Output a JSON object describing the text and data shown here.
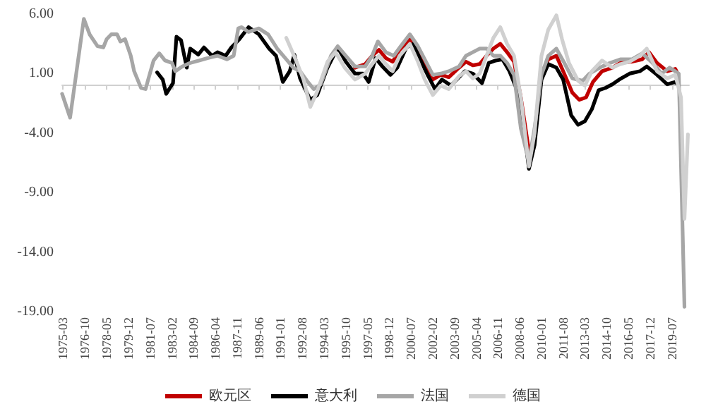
{
  "chart_data": {
    "type": "line",
    "legend": "bottom",
    "grid": false,
    "marker": "none",
    "line_style": "solid",
    "xlim": [
      "1975-02",
      "2020-10"
    ],
    "ylim": [
      -19,
      6
    ],
    "xticks": [
      "1975-03",
      "1976-10",
      "1978-05",
      "1979-12",
      "1981-07",
      "1983-02",
      "1984-09",
      "1986-04",
      "1987-11",
      "1989-06",
      "1991-01",
      "1992-08",
      "1994-03",
      "1995-10",
      "1997-05",
      "1998-12",
      "2000-07",
      "2002-02",
      "2003-09",
      "2005-04",
      "2006-11",
      "2008-06",
      "2010-01",
      "2011-08",
      "2013-03",
      "2014-10",
      "2016-05",
      "2017-12",
      "2019-07"
    ],
    "yticks": [
      {
        "value": -19,
        "label": "-19.00"
      },
      {
        "value": -14,
        "label": "-14.00"
      },
      {
        "value": -9,
        "label": "-9.00"
      },
      {
        "value": -4,
        "label": "-4.00"
      },
      {
        "value": 1,
        "label": "1.00"
      },
      {
        "value": 6,
        "label": "6.00"
      }
    ],
    "series": [
      {
        "name": "欧元区",
        "color": "#c00000",
        "x": [
          "1996-06",
          "1997-03",
          "1997-09",
          "1998-03",
          "1998-09",
          "1999-03",
          "1999-09",
          "2000-06",
          "2001-01",
          "2001-07",
          "2002-02",
          "2002-09",
          "2003-04",
          "2004-01",
          "2004-07",
          "2005-01",
          "2005-07",
          "2006-01",
          "2006-07",
          "2007-01",
          "2007-07",
          "2008-01",
          "2008-07",
          "2009-02",
          "2009-07",
          "2010-01",
          "2010-07",
          "2011-02",
          "2011-08",
          "2012-04",
          "2012-10",
          "2013-04",
          "2013-10",
          "2014-06",
          "2015-03",
          "2015-10",
          "2016-08",
          "2017-05",
          "2017-11",
          "2018-06",
          "2019-03",
          "2019-10",
          "2020-01"
        ],
        "values": [
          1.5,
          1.8,
          2.5,
          3.0,
          2.3,
          2.0,
          3.0,
          3.9,
          3.0,
          1.8,
          0.5,
          0.9,
          0.7,
          1.5,
          2.0,
          1.7,
          1.8,
          2.5,
          3.1,
          3.5,
          2.8,
          2.0,
          -1.0,
          -5.5,
          -4.5,
          1.0,
          2.2,
          2.5,
          1.2,
          -0.6,
          -1.2,
          -1.0,
          0.3,
          1.2,
          1.5,
          1.9,
          2.0,
          2.2,
          2.8,
          1.9,
          1.2,
          1.4,
          0.8
        ]
      },
      {
        "name": "意大利",
        "color": "#000000",
        "x": [
          "1982-01",
          "1982-06",
          "1982-09",
          "1983-03",
          "1983-06",
          "1983-10",
          "1984-03",
          "1984-06",
          "1985-01",
          "1985-06",
          "1986-01",
          "1986-06",
          "1987-01",
          "1987-06",
          "1988-01",
          "1988-09",
          "1989-06",
          "1990-03",
          "1990-09",
          "1991-03",
          "1991-09",
          "1992-01",
          "1992-06",
          "1993-03",
          "1993-09",
          "1994-06",
          "1995-03",
          "1995-10",
          "1996-06",
          "1997-01",
          "1997-06",
          "1997-12",
          "1998-06",
          "1999-01",
          "1999-07",
          "2000-03",
          "2000-09",
          "2001-03",
          "2001-10",
          "2002-04",
          "2002-10",
          "2003-06",
          "2004-06",
          "2005-01",
          "2005-09",
          "2006-03",
          "2006-09",
          "2007-03",
          "2007-09",
          "2008-03",
          "2008-09",
          "2009-02",
          "2009-07",
          "2010-01",
          "2010-07",
          "2011-02",
          "2011-08",
          "2012-03",
          "2012-09",
          "2013-03",
          "2013-09",
          "2014-03",
          "2014-09",
          "2015-03",
          "2015-09",
          "2016-06",
          "2017-03",
          "2017-09",
          "2018-06",
          "2019-03",
          "2019-10",
          "2020-01"
        ],
        "values": [
          1.1,
          0.5,
          -0.7,
          0.2,
          4.1,
          3.8,
          1.5,
          3.1,
          2.6,
          3.2,
          2.5,
          2.8,
          2.5,
          3.2,
          3.9,
          4.9,
          4.3,
          3.1,
          2.5,
          0.3,
          1.2,
          2.6,
          0.6,
          -1.2,
          -0.8,
          1.5,
          3.2,
          2.0,
          1.0,
          1.0,
          0.3,
          2.3,
          1.6,
          0.9,
          1.5,
          3.2,
          3.5,
          2.2,
          0.8,
          -0.3,
          0.5,
          0.0,
          1.2,
          1.0,
          0.2,
          1.9,
          2.1,
          2.2,
          1.2,
          -0.2,
          -3.0,
          -7.0,
          -5.0,
          0.5,
          1.8,
          1.5,
          0.5,
          -2.5,
          -3.3,
          -3.0,
          -2.0,
          -0.4,
          -0.2,
          0.1,
          0.5,
          1.0,
          1.2,
          1.6,
          0.9,
          0.1,
          0.3,
          0.0
        ]
      },
      {
        "name": "法国",
        "color": "#a6a6a6",
        "x": [
          "1975-02",
          "1975-09",
          "1976-09",
          "1977-02",
          "1977-09",
          "1978-02",
          "1978-05",
          "1978-09",
          "1979-02",
          "1979-05",
          "1979-09",
          "1980-02",
          "1980-05",
          "1980-11",
          "1981-03",
          "1981-05",
          "1981-10",
          "1982-03",
          "1982-08",
          "1983-02",
          "1983-05",
          "1983-11",
          "1984-06",
          "1985-02",
          "1985-09",
          "1986-06",
          "1987-02",
          "1987-08",
          "1987-12",
          "1988-03",
          "1988-09",
          "1989-06",
          "1990-02",
          "1990-10",
          "1991-06",
          "1991-12",
          "1992-06",
          "1992-12",
          "1993-06",
          "1993-12",
          "1994-09",
          "1995-03",
          "1995-10",
          "1996-06",
          "1997-03",
          "1997-09",
          "1998-02",
          "1998-09",
          "1999-04",
          "1999-10",
          "2000-06",
          "2001-01",
          "2001-07",
          "2002-02",
          "2002-09",
          "2003-04",
          "2004-01",
          "2004-07",
          "2005-01",
          "2005-07",
          "2006-01",
          "2006-07",
          "2007-01",
          "2007-07",
          "2008-01",
          "2008-07",
          "2009-02",
          "2009-07",
          "2010-01",
          "2010-07",
          "2011-02",
          "2011-09",
          "2012-04",
          "2013-01",
          "2013-07",
          "2014-04",
          "2015-01",
          "2015-10",
          "2016-08",
          "2017-05",
          "2018-02",
          "2018-10",
          "2019-05",
          "2020-01",
          "2020-06"
        ],
        "values": [
          -0.7,
          -2.7,
          5.6,
          4.3,
          3.3,
          3.2,
          3.9,
          4.3,
          4.3,
          3.7,
          3.9,
          2.5,
          1.2,
          -0.2,
          -0.3,
          0.4,
          2.1,
          2.7,
          2.1,
          1.9,
          1.2,
          1.6,
          1.9,
          2.1,
          2.3,
          2.5,
          2.2,
          2.5,
          4.8,
          4.9,
          4.5,
          4.8,
          4.3,
          3.1,
          2.2,
          1.5,
          1.2,
          0.4,
          -0.3,
          0.1,
          2.5,
          3.3,
          2.5,
          1.6,
          1.6,
          2.5,
          3.7,
          2.8,
          2.5,
          3.3,
          4.3,
          3.3,
          2.2,
          0.9,
          1.0,
          1.2,
          1.6,
          2.5,
          2.8,
          3.1,
          3.1,
          2.5,
          2.5,
          1.9,
          0.9,
          -3.6,
          -6.4,
          -3.6,
          0.9,
          2.5,
          3.1,
          1.9,
          0.6,
          0.4,
          1.0,
          1.5,
          1.9,
          2.2,
          2.2,
          2.7,
          1.9,
          1.0,
          1.5,
          1.0,
          -18.6
        ]
      },
      {
        "name": "德国",
        "color": "#d0d0d0",
        "x": [
          "1991-06",
          "1992-03",
          "1992-09",
          "1993-03",
          "1993-09",
          "1994-06",
          "1995-01",
          "1995-09",
          "1996-06",
          "1997-03",
          "1997-09",
          "1998-03",
          "1998-09",
          "1999-03",
          "1999-09",
          "2000-06",
          "2001-01",
          "2001-07",
          "2002-02",
          "2002-09",
          "2003-04",
          "2004-01",
          "2004-07",
          "2005-01",
          "2005-07",
          "2006-01",
          "2006-07",
          "2007-01",
          "2007-07",
          "2008-01",
          "2008-07",
          "2009-02",
          "2009-07",
          "2010-01",
          "2010-07",
          "2011-02",
          "2011-07",
          "2012-01",
          "2012-09",
          "2013-03",
          "2013-09",
          "2014-06",
          "2015-03",
          "2015-10",
          "2016-06",
          "2017-03",
          "2017-09",
          "2018-06",
          "2019-03",
          "2019-10",
          "2020-03",
          "2020-06",
          "2020-09"
        ],
        "values": [
          4.0,
          2.0,
          0.5,
          -1.8,
          -0.5,
          2.0,
          2.8,
          1.5,
          0.5,
          1.0,
          1.8,
          2.5,
          1.8,
          1.2,
          2.5,
          3.5,
          2.0,
          0.5,
          -0.8,
          0.0,
          -0.3,
          0.8,
          1.2,
          0.6,
          1.0,
          2.5,
          4.0,
          4.9,
          3.5,
          2.5,
          -1.0,
          -6.8,
          -4.0,
          2.5,
          4.7,
          5.9,
          3.9,
          1.9,
          0.4,
          0.0,
          1.2,
          2.1,
          1.5,
          1.8,
          2.0,
          2.5,
          3.1,
          1.2,
          0.6,
          0.9,
          -1.0,
          -11.2,
          -4.1
        ]
      }
    ]
  }
}
